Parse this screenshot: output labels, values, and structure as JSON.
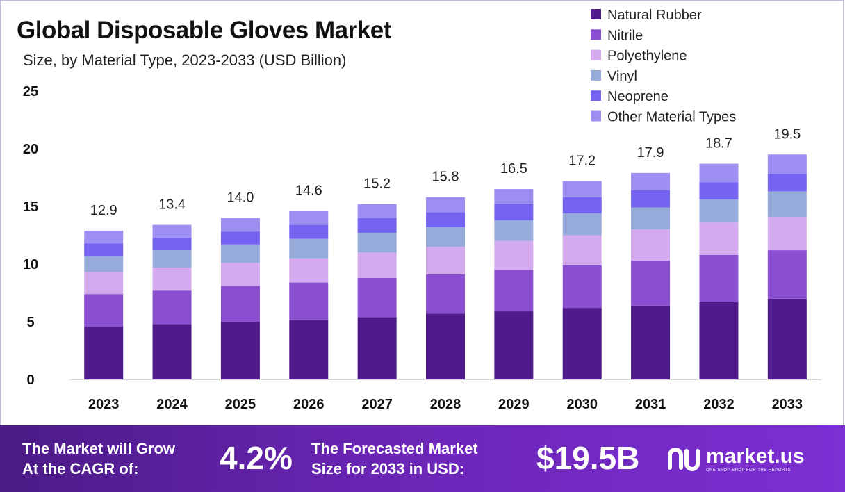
{
  "title": "Global Disposable Gloves Market",
  "subtitle": "Size, by Material Type, 2023-2033 (USD Billion)",
  "chart_data": {
    "type": "bar",
    "stacked": true,
    "categories": [
      "2023",
      "2024",
      "2025",
      "2026",
      "2027",
      "2028",
      "2029",
      "2030",
      "2031",
      "2032",
      "2033"
    ],
    "totals": [
      12.9,
      13.4,
      14.0,
      14.6,
      15.2,
      15.8,
      16.5,
      17.2,
      17.9,
      18.7,
      19.5
    ],
    "total_labels": [
      "12.9",
      "13.4",
      "14.0",
      "14.6",
      "15.2",
      "15.8",
      "16.5",
      "17.2",
      "17.9",
      "18.7",
      "19.5"
    ],
    "series": [
      {
        "name": "Natural Rubber",
        "color": "#4f1a8a",
        "values": [
          4.6,
          4.8,
          5.0,
          5.2,
          5.4,
          5.7,
          5.9,
          6.2,
          6.4,
          6.7,
          7.0
        ]
      },
      {
        "name": "Nitrile",
        "color": "#8a4fd0",
        "values": [
          2.8,
          2.9,
          3.1,
          3.2,
          3.4,
          3.4,
          3.6,
          3.7,
          3.9,
          4.1,
          4.2
        ]
      },
      {
        "name": "Polyethylene",
        "color": "#d3aaee",
        "values": [
          1.9,
          2.0,
          2.0,
          2.1,
          2.2,
          2.4,
          2.5,
          2.6,
          2.7,
          2.8,
          2.9
        ]
      },
      {
        "name": "Vinyl",
        "color": "#97abdb",
        "values": [
          1.4,
          1.5,
          1.6,
          1.7,
          1.7,
          1.7,
          1.8,
          1.9,
          1.9,
          2.0,
          2.2
        ]
      },
      {
        "name": "Neoprene",
        "color": "#7564f2",
        "values": [
          1.1,
          1.1,
          1.1,
          1.2,
          1.3,
          1.3,
          1.4,
          1.4,
          1.5,
          1.5,
          1.5
        ]
      },
      {
        "name": "Other Material Types",
        "color": "#9d8ef2",
        "values": [
          1.1,
          1.1,
          1.2,
          1.2,
          1.2,
          1.3,
          1.3,
          1.4,
          1.5,
          1.6,
          1.7
        ]
      }
    ],
    "yticks": [
      "0",
      "5",
      "10",
      "15",
      "20",
      "25"
    ],
    "ylim": [
      0,
      25
    ],
    "grid": false,
    "legend_position": "top-right"
  },
  "footer": {
    "cagr_label_line1": "The Market will Grow",
    "cagr_label_line2": "At the CAGR of:",
    "cagr_value": "4.2%",
    "forecast_label_line1": "The Forecasted Market",
    "forecast_label_line2": "Size for 2033 in USD:",
    "forecast_value": "$19.5B",
    "brand_name": "market.us",
    "brand_tagline": "ONE STOP SHOP FOR THE REPORTS",
    "brand_icon": "market-us-logo-icon"
  }
}
